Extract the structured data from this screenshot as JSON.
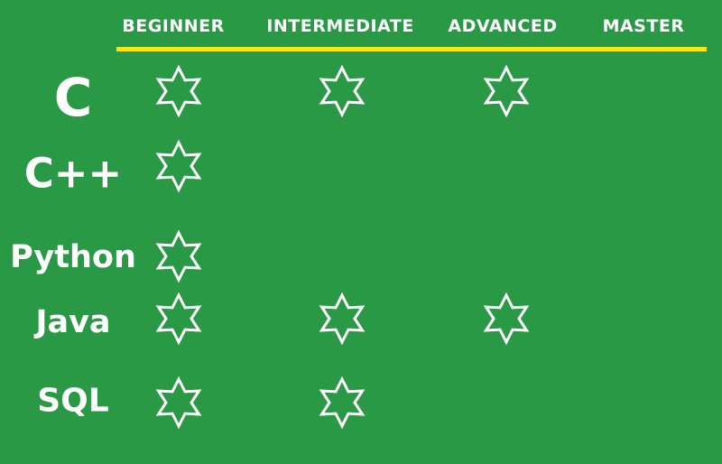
{
  "header": {
    "levels": [
      "BEGINNER",
      "INTERMEDIATE",
      "ADVANCED",
      "MASTER"
    ]
  },
  "rows": [
    {
      "language": "C",
      "stars": [
        true,
        true,
        true,
        false
      ]
    },
    {
      "language": "C++",
      "stars": [
        true,
        false,
        false,
        false
      ]
    },
    {
      "language": "Python",
      "stars": [
        true,
        false,
        false,
        false
      ]
    },
    {
      "language": "Java",
      "stars": [
        true,
        true,
        true,
        false
      ]
    },
    {
      "language": "SQL",
      "stars": [
        true,
        true,
        false,
        false
      ]
    }
  ],
  "colors": {
    "background": "#2a9946",
    "rule": "#f5e614",
    "text": "#ffffff"
  },
  "icons": {
    "rating": "six-point-star-outline-icon"
  }
}
